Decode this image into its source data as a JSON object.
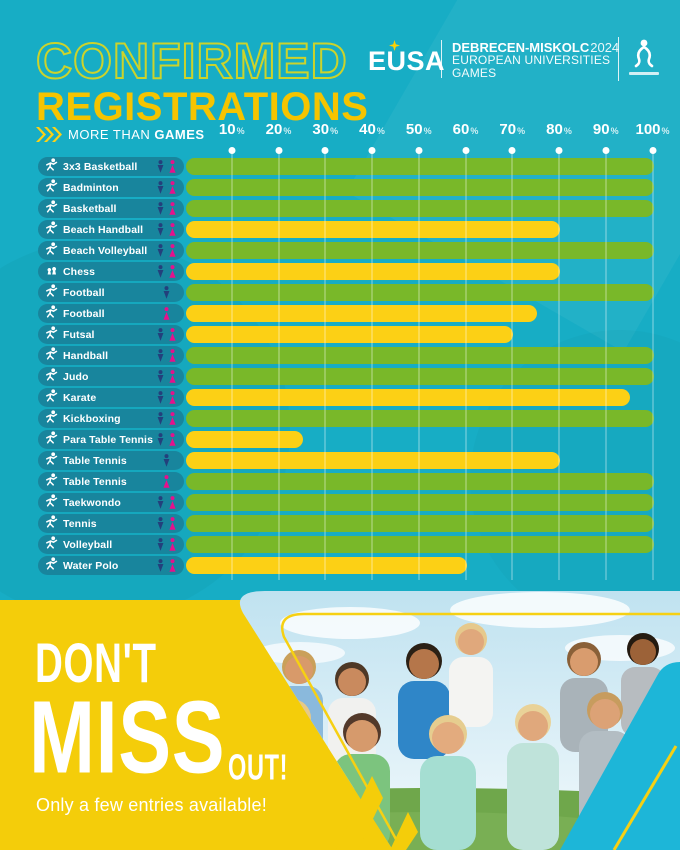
{
  "colors": {
    "background": "#17adc5",
    "pill_teal": "#18859d",
    "bar_complete_green": "#79b829",
    "bar_partial_yellow": "#fcd015",
    "male_icon": "#23407c",
    "female_icon": "#e5118c",
    "footer_yellow": "#f4cd0a",
    "title_outline": "#ccd32b",
    "title_fill": "#f5c400",
    "cyan_overlay": "#1db6d8"
  },
  "header": {
    "title_line1": "CONFIRMED",
    "title_line2": "REGISTRATIONS",
    "eusa": "EUSA",
    "event_name_bold": "DEBRECEN-MISKOLC",
    "event_year": "2024",
    "event_sub1": "EUROPEAN UNIVERSITIES",
    "event_sub2": "GAMES"
  },
  "tagline": {
    "light": "MORE THAN",
    "bold": "GAMES"
  },
  "chart_data": {
    "type": "bar",
    "orientation": "horizontal",
    "unit": "%",
    "xlim": [
      0,
      100
    ],
    "ticks": [
      10,
      20,
      30,
      40,
      50,
      60,
      70,
      80,
      90,
      100
    ],
    "tick_suffix": "%",
    "grid": true,
    "rows": [
      {
        "sport": "3x3 Basketball",
        "men": true,
        "women": true,
        "value": 100,
        "bar_color": "green"
      },
      {
        "sport": "Badminton",
        "men": true,
        "women": true,
        "value": 100,
        "bar_color": "green"
      },
      {
        "sport": "Basketball",
        "men": true,
        "women": true,
        "value": 100,
        "bar_color": "green"
      },
      {
        "sport": "Beach Handball",
        "men": true,
        "women": true,
        "value": 80,
        "bar_color": "yellow"
      },
      {
        "sport": "Beach Volleyball",
        "men": true,
        "women": true,
        "value": 100,
        "bar_color": "green"
      },
      {
        "sport": "Chess",
        "men": true,
        "women": true,
        "value": 80,
        "bar_color": "yellow"
      },
      {
        "sport": "Football",
        "men": true,
        "women": false,
        "value": 100,
        "bar_color": "green"
      },
      {
        "sport": "Football",
        "men": false,
        "women": true,
        "value": 75,
        "bar_color": "yellow"
      },
      {
        "sport": "Futsal",
        "men": true,
        "women": true,
        "value": 70,
        "bar_color": "yellow"
      },
      {
        "sport": "Handball",
        "men": true,
        "women": true,
        "value": 100,
        "bar_color": "green"
      },
      {
        "sport": "Judo",
        "men": true,
        "women": true,
        "value": 100,
        "bar_color": "green"
      },
      {
        "sport": "Karate",
        "men": true,
        "women": true,
        "value": 95,
        "bar_color": "yellow"
      },
      {
        "sport": "Kickboxing",
        "men": true,
        "women": true,
        "value": 100,
        "bar_color": "green"
      },
      {
        "sport": "Para Table Tennis",
        "men": true,
        "women": true,
        "value": 25,
        "bar_color": "yellow"
      },
      {
        "sport": "Table Tennis",
        "men": true,
        "women": false,
        "value": 80,
        "bar_color": "yellow"
      },
      {
        "sport": "Table Tennis",
        "men": false,
        "women": true,
        "value": 100,
        "bar_color": "green"
      },
      {
        "sport": "Taekwondo",
        "men": true,
        "women": true,
        "value": 100,
        "bar_color": "green"
      },
      {
        "sport": "Tennis",
        "men": true,
        "women": true,
        "value": 100,
        "bar_color": "green"
      },
      {
        "sport": "Volleyball",
        "men": true,
        "women": true,
        "value": 100,
        "bar_color": "green"
      },
      {
        "sport": "Water Polo",
        "men": true,
        "women": true,
        "value": 60,
        "bar_color": "yellow"
      }
    ]
  },
  "footer": {
    "line1": "DON'T",
    "line2": "MISS",
    "line3": "OUT!",
    "subtitle": "Only a few entries available!"
  }
}
